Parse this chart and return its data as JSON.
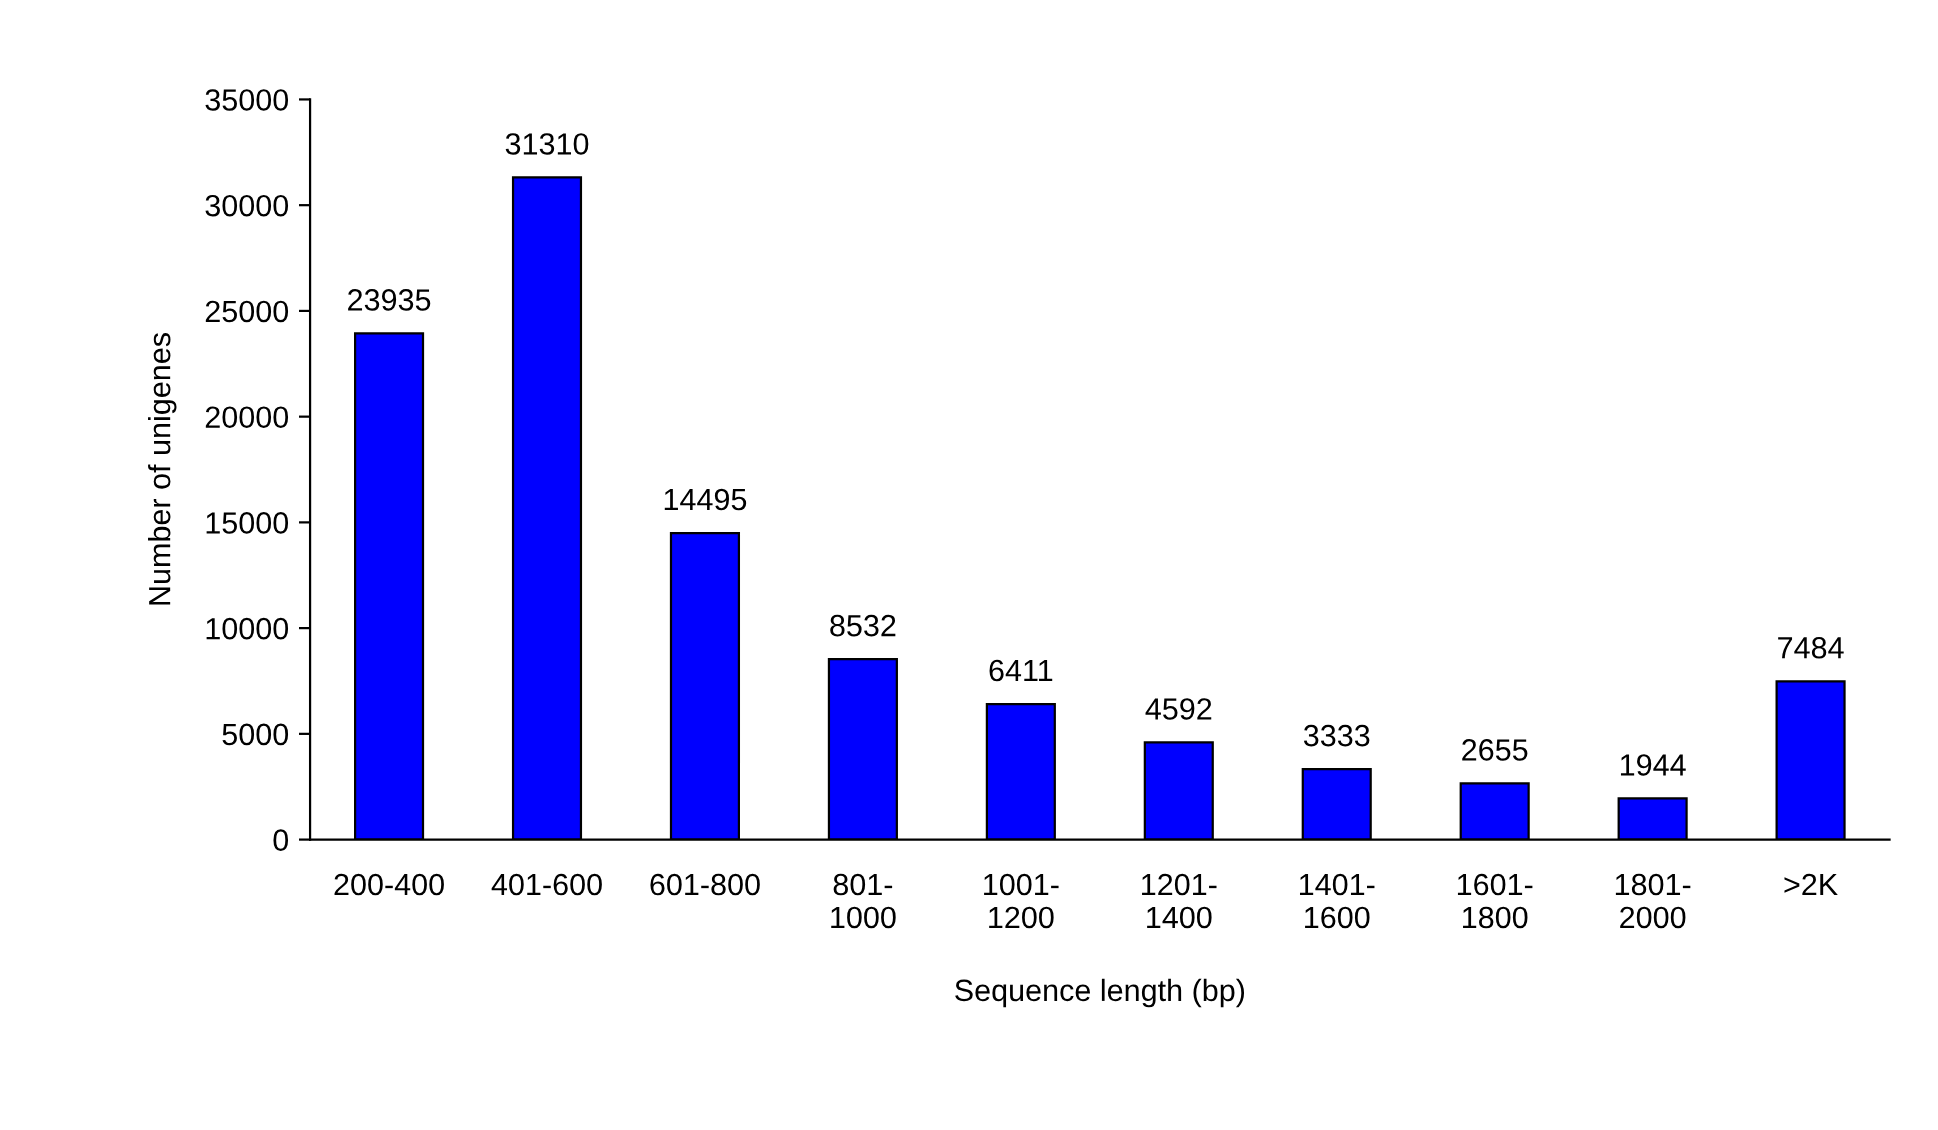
{
  "chart_data": {
    "type": "bar",
    "xlabel": "Sequence length (bp)",
    "ylabel": "Number of unigenes",
    "categories": [
      "200-400",
      "401-600",
      "601-800",
      "801-1000",
      "1001-1200",
      "1201-1400",
      "1401-1600",
      "1601-1800",
      "1801-2000",
      ">2K"
    ],
    "values": [
      23935,
      31310,
      14495,
      8532,
      6411,
      4592,
      3333,
      2655,
      1944,
      7484
    ],
    "color": "#0000ff",
    "ylim": [
      0,
      35000
    ],
    "yticks": [
      0,
      5000,
      10000,
      15000,
      20000,
      25000,
      30000,
      35000
    ],
    "data_labels": true,
    "grid": false,
    "legend": false
  }
}
